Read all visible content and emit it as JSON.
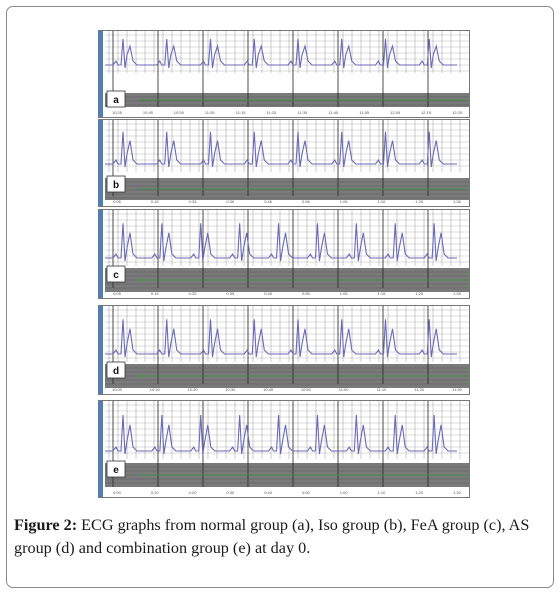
{
  "figure": {
    "caption_label": "Figure 2:",
    "caption_text": " ECG graphs from normal group (a), Iso group (b), FeA group (c), AS group (d) and combination group (e) at day 0."
  },
  "panels": [
    {
      "label": "a",
      "ticks": [
        "10:25",
        "10:45",
        "10:55",
        "11:05",
        "11:15",
        "11:25",
        "11:35",
        "11:45",
        "11:55",
        "12:05",
        "12:15",
        "12:25"
      ],
      "beats": 8
    },
    {
      "label": "b",
      "ticks": [
        "0:06",
        "0:16",
        "0:26",
        "0:36",
        "0:46",
        "0:56",
        "1:06",
        "1:16",
        "1:26",
        "1:36"
      ],
      "beats": 8
    },
    {
      "label": "c",
      "ticks": [
        "0:05",
        "0:15",
        "0:25",
        "0:35",
        "0:45",
        "0:55",
        "1:05",
        "1:15",
        "1:25",
        "1:35"
      ],
      "beats": 9
    },
    {
      "label": "d",
      "ticks": [
        "10:00",
        "10:10",
        "10:20",
        "10:30",
        "10:40",
        "10:50",
        "11:00",
        "11:10",
        "11:20",
        "11:30"
      ],
      "beats": 8
    },
    {
      "label": "e",
      "ticks": [
        "0:00",
        "0:10",
        "0:20",
        "0:30",
        "0:40",
        "0:50",
        "1:00",
        "1:10",
        "1:20",
        "1:30"
      ],
      "beats": 9
    }
  ],
  "colors": {
    "trace": "#6a6ab8",
    "grid": "#222222",
    "dark_band": "#7a7a7a",
    "side_bar": "#4a7fc1",
    "green": "#3d9a3d"
  }
}
